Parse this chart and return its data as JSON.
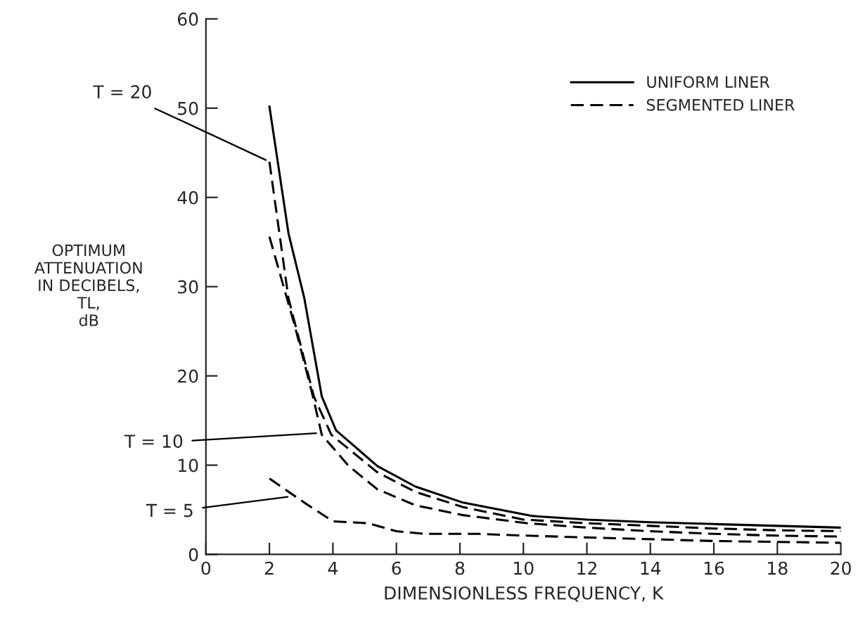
{
  "chart_data": {
    "type": "line",
    "xlabel": "DIMENSIONLESS FREQUENCY, K",
    "ylabel": "OPTIMUM\nATTENUATION\nIN DECIBELS,\nTL,\ndB",
    "xlim": [
      0,
      20
    ],
    "xticks": [
      0,
      2,
      4,
      6,
      8,
      10,
      12,
      14,
      16,
      18,
      20
    ],
    "ylim": [
      0,
      60
    ],
    "yticks": [
      0,
      10,
      20,
      30,
      40,
      50,
      60
    ],
    "grid": false,
    "legend": "top right",
    "marker": "none",
    "series": [
      {
        "name": "UNIFORM LINER",
        "color": "#000000",
        "line_style": "solid",
        "x": [
          2,
          2.6,
          3.1,
          3.65,
          4.1,
          5.4,
          6.6,
          8.1,
          10.3,
          12,
          14,
          16,
          18,
          20
        ],
        "values": [
          50.2,
          36,
          28.7,
          17.7,
          13.9,
          9.9,
          7.6,
          5.8,
          4.3,
          3.9,
          3.6,
          3.4,
          3.2,
          3.0
        ]
      },
      {
        "name": "SEGMENTED LINER",
        "color": "#000000",
        "line_style": "dashed",
        "x": [
          2,
          2.6,
          3.4,
          3.95,
          5.4,
          6.6,
          8.1,
          10,
          12,
          14,
          16,
          18,
          20
        ],
        "values": [
          44,
          28.7,
          17.7,
          13.4,
          9.2,
          7.0,
          5.3,
          3.9,
          3.5,
          3.2,
          2.9,
          2.7,
          2.6
        ]
      },
      {
        "color": "#000000",
        "line_style": "dashed",
        "x": [
          2,
          2.8,
          3.35,
          3.65,
          4.5,
          5.4,
          6.6,
          8.1,
          10.1,
          12,
          14,
          16,
          18,
          20
        ],
        "values": [
          35.6,
          25.6,
          18,
          13.4,
          9.9,
          7.3,
          5.5,
          4.4,
          3.5,
          3.0,
          2.6,
          2.3,
          2.1,
          2.0
        ]
      },
      {
        "color": "#000000",
        "line_style": "dashed",
        "x": [
          2,
          3.1,
          4,
          5.1,
          6,
          6.9,
          8.6,
          10.1,
          12,
          14,
          16,
          18,
          20
        ],
        "values": [
          8.5,
          5.8,
          3.7,
          3.5,
          2.6,
          2.3,
          2.3,
          2.1,
          1.9,
          1.7,
          1.5,
          1.4,
          1.3
        ]
      }
    ],
    "annotations": [
      {
        "text": "T = 20",
        "x": 2,
        "y": 44
      },
      {
        "text": "T = 10",
        "x": 3.6,
        "y": 13.6
      },
      {
        "text": "T = 5",
        "x": 2.7,
        "y": 6.5
      }
    ]
  }
}
